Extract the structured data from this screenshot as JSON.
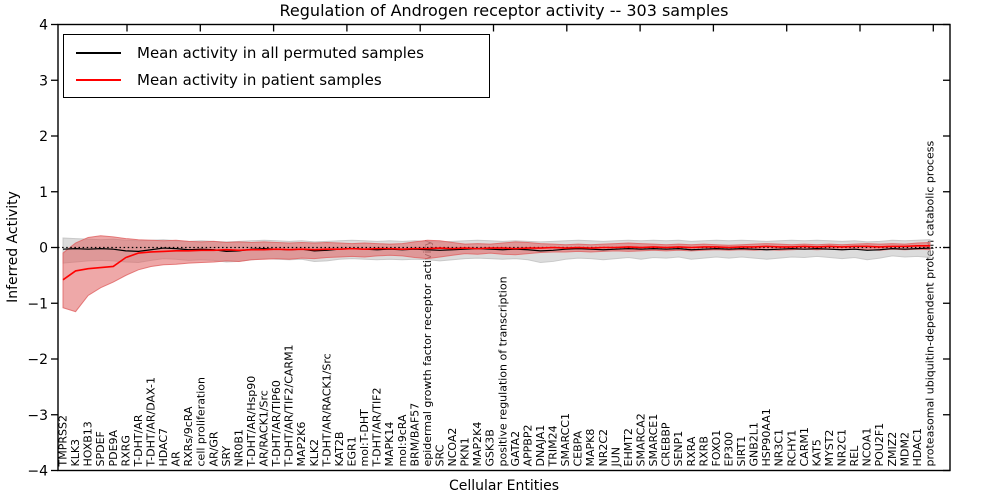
{
  "figure": {
    "title": "Regulation of Androgen receptor activity -- 303 samples",
    "xlabel": "Cellular Entities",
    "ylabel": "Inferred Activity"
  },
  "legend": {
    "position": "upper left",
    "items": [
      {
        "label": "Mean activity in all permuted samples",
        "color": "#000000"
      },
      {
        "label": "Mean activity in patient samples",
        "color": "#ff0000"
      }
    ]
  },
  "chart_data": {
    "type": "line",
    "title": "Regulation of Androgen receptor activity -- 303 samples",
    "xlabel": "Cellular Entities",
    "ylabel": "Inferred Activity",
    "ylim": [
      -4,
      4
    ],
    "yticks": [
      -4,
      -3,
      -2,
      -1,
      0,
      1,
      2,
      3,
      4
    ],
    "ytick_labels": [
      "−4",
      "−3",
      "−2",
      "−1",
      "0",
      "1",
      "2",
      "3",
      "4"
    ],
    "grid": false,
    "legend_position": "upper left",
    "categories": [
      "TMPRSS2",
      "KLK3",
      "HOXB13",
      "SPDEF",
      "PDE9A",
      "RXRG",
      "T-DHT/AR",
      "T-DHT/AR/DAX-1",
      "HDAC7",
      "AR",
      "RXRs/9cRA",
      "cell proliferation",
      "AR/GR",
      "SRY",
      "NR0B1",
      "T-DHT/AR/Hsp90",
      "AR/RACK1/Src",
      "T-DHT/AR/TIP60",
      "T-DHT/AR/TIF2/CARM1",
      "MAP2K6",
      "KLK2",
      "T-DHT/AR/RACK1/Src",
      "KAT2B",
      "EGR1",
      "mol:T-DHT",
      "T-DHT/AR/TIF2",
      "MAPK14",
      "mol:9cRA",
      "BRM/BAF57",
      "epidermal growth factor receptor activity",
      "SRC",
      "NCOA2",
      "PKN1",
      "MAP2K4",
      "GSK3B",
      "positive regulation of transcription",
      "GATA2",
      "APPBP2",
      "DNAJA1",
      "TRIM24",
      "SMARCC1",
      "CEBPA",
      "MAPK8",
      "NR2C2",
      "JUN",
      "EHMT2",
      "SMARCA2",
      "SMARCE1",
      "CREBBP",
      "SENP1",
      "RXRA",
      "RXRB",
      "FOXO1",
      "EP300",
      "SIRT1",
      "GNB2L1",
      "HSP90AA1",
      "NR3C1",
      "RCHY1",
      "CARM1",
      "KAT5",
      "MYST2",
      "NR2C1",
      "REL",
      "NCOA1",
      "POU2F1",
      "ZMIZ2",
      "MDM2",
      "HDAC1",
      "proteasomal ubiquitin-dependent protein catabolic process"
    ],
    "series": [
      {
        "name": "Mean activity in all permuted samples",
        "color": "#000000",
        "style": "solid",
        "values": [
          -0.03,
          -0.02,
          -0.03,
          -0.02,
          -0.03,
          -0.06,
          -0.07,
          -0.04,
          -0.01,
          -0.02,
          -0.04,
          -0.03,
          -0.04,
          -0.07,
          -0.06,
          -0.03,
          -0.02,
          -0.03,
          -0.04,
          -0.03,
          -0.06,
          -0.05,
          -0.03,
          -0.02,
          -0.03,
          -0.04,
          -0.03,
          -0.04,
          -0.03,
          -0.04,
          -0.05,
          -0.04,
          -0.03,
          -0.02,
          -0.03,
          -0.04,
          -0.03,
          -0.04,
          -0.06,
          -0.05,
          -0.03,
          -0.02,
          -0.03,
          -0.04,
          -0.03,
          -0.02,
          -0.03,
          -0.02,
          -0.03,
          -0.02,
          -0.04,
          -0.03,
          -0.02,
          -0.03,
          -0.02,
          -0.03,
          -0.04,
          -0.03,
          -0.02,
          -0.03,
          -0.02,
          -0.03,
          -0.04,
          -0.03,
          -0.05,
          -0.04,
          -0.02,
          -0.03,
          -0.02,
          -0.01
        ]
      },
      {
        "name": "Mean activity in patient samples",
        "color": "#ff0000",
        "style": "solid",
        "values": [
          -0.58,
          -0.42,
          -0.38,
          -0.36,
          -0.34,
          -0.18,
          -0.1,
          -0.08,
          -0.07,
          -0.06,
          -0.06,
          -0.05,
          -0.05,
          -0.04,
          -0.05,
          -0.04,
          -0.04,
          -0.03,
          -0.04,
          -0.03,
          -0.04,
          -0.03,
          -0.03,
          -0.02,
          -0.03,
          -0.02,
          -0.02,
          -0.03,
          -0.02,
          -0.02,
          -0.01,
          -0.02,
          -0.01,
          -0.02,
          -0.01,
          -0.01,
          -0.02,
          -0.01,
          -0.01,
          0.0,
          -0.01,
          0.0,
          -0.01,
          0.0,
          0.0,
          0.01,
          0.0,
          0.01,
          0.0,
          0.01,
          0.0,
          0.01,
          0.01,
          0.0,
          0.01,
          0.01,
          0.02,
          0.01,
          0.01,
          0.02,
          0.01,
          0.02,
          0.01,
          0.02,
          0.02,
          0.01,
          0.02,
          0.02,
          0.03,
          0.03
        ]
      },
      {
        "name": "zero reference",
        "color": "#000000",
        "style": "dotted",
        "values_constant": 0
      }
    ],
    "bands": [
      {
        "name": "permuted samples ± std",
        "fill": "#bfbfbf",
        "upper": [
          0.17,
          0.16,
          0.15,
          0.14,
          0.15,
          0.13,
          0.12,
          0.13,
          0.14,
          0.12,
          0.11,
          0.12,
          0.11,
          0.1,
          0.11,
          0.12,
          0.13,
          0.12,
          0.11,
          0.12,
          0.1,
          0.11,
          0.12,
          0.13,
          0.12,
          0.11,
          0.12,
          0.11,
          0.12,
          0.11,
          0.1,
          0.11,
          0.12,
          0.13,
          0.12,
          0.11,
          0.12,
          0.11,
          0.1,
          0.11,
          0.12,
          0.13,
          0.12,
          0.11,
          0.12,
          0.13,
          0.12,
          0.13,
          0.12,
          0.13,
          0.11,
          0.12,
          0.13,
          0.12,
          0.13,
          0.12,
          0.11,
          0.12,
          0.13,
          0.12,
          0.13,
          0.12,
          0.11,
          0.12,
          0.1,
          0.11,
          0.13,
          0.12,
          0.13,
          0.14
        ],
        "lower": [
          -0.28,
          -0.26,
          -0.24,
          -0.23,
          -0.24,
          -0.26,
          -0.27,
          -0.23,
          -0.2,
          -0.21,
          -0.23,
          -0.22,
          -0.23,
          -0.26,
          -0.25,
          -0.22,
          -0.2,
          -0.21,
          -0.22,
          -0.21,
          -0.25,
          -0.24,
          -0.21,
          -0.2,
          -0.21,
          -0.22,
          -0.21,
          -0.22,
          -0.21,
          -0.22,
          -0.24,
          -0.22,
          -0.2,
          -0.19,
          -0.2,
          -0.21,
          -0.2,
          -0.22,
          -0.27,
          -0.25,
          -0.21,
          -0.19,
          -0.2,
          -0.22,
          -0.2,
          -0.18,
          -0.21,
          -0.18,
          -0.19,
          -0.17,
          -0.21,
          -0.19,
          -0.17,
          -0.19,
          -0.17,
          -0.19,
          -0.21,
          -0.19,
          -0.17,
          -0.18,
          -0.16,
          -0.18,
          -0.2,
          -0.18,
          -0.22,
          -0.19,
          -0.15,
          -0.17,
          -0.16,
          -0.18
        ]
      },
      {
        "name": "patient samples ± std",
        "fill": "#e06060",
        "upper": [
          -0.1,
          0.08,
          0.18,
          0.21,
          0.19,
          0.16,
          0.14,
          0.13,
          0.12,
          0.13,
          0.11,
          0.1,
          0.11,
          0.09,
          0.1,
          0.09,
          0.1,
          0.09,
          0.08,
          0.09,
          0.08,
          0.09,
          0.08,
          0.07,
          0.08,
          0.07,
          0.06,
          0.07,
          0.1,
          0.13,
          0.12,
          0.09,
          0.06,
          0.07,
          0.06,
          0.08,
          0.1,
          0.09,
          0.07,
          0.06,
          0.05,
          0.06,
          0.05,
          0.06,
          0.07,
          0.08,
          0.07,
          0.06,
          0.05,
          0.06,
          0.05,
          0.06,
          0.05,
          0.04,
          0.05,
          0.06,
          0.07,
          0.06,
          0.05,
          0.06,
          0.05,
          0.06,
          0.05,
          0.06,
          0.07,
          0.06,
          0.07,
          0.06,
          0.08,
          0.09
        ],
        "lower": [
          -1.08,
          -1.15,
          -0.86,
          -0.72,
          -0.62,
          -0.5,
          -0.4,
          -0.34,
          -0.31,
          -0.3,
          -0.28,
          -0.27,
          -0.26,
          -0.24,
          -0.25,
          -0.22,
          -0.21,
          -0.2,
          -0.21,
          -0.19,
          -0.2,
          -0.18,
          -0.17,
          -0.16,
          -0.17,
          -0.15,
          -0.14,
          -0.15,
          -0.18,
          -0.2,
          -0.17,
          -0.14,
          -0.11,
          -0.12,
          -0.1,
          -0.12,
          -0.13,
          -0.11,
          -0.09,
          -0.08,
          -0.08,
          -0.07,
          -0.08,
          -0.07,
          -0.06,
          -0.07,
          -0.06,
          -0.05,
          -0.06,
          -0.05,
          -0.06,
          -0.05,
          -0.04,
          -0.05,
          -0.04,
          -0.05,
          -0.04,
          -0.05,
          -0.04,
          -0.03,
          -0.04,
          -0.03,
          -0.04,
          -0.03,
          -0.04,
          -0.05,
          -0.03,
          -0.04,
          -0.03,
          -0.04
        ]
      }
    ]
  }
}
